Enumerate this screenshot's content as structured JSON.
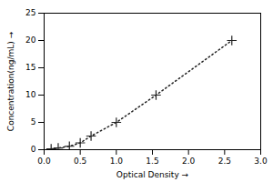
{
  "chart_data": {
    "type": "line",
    "x": [
      0.097,
      0.195,
      0.35,
      0.5,
      0.65,
      1.0,
      1.55,
      2.6
    ],
    "values": [
      0.156,
      0.312,
      0.625,
      1.25,
      2.5,
      5.0,
      10.0,
      20.0
    ],
    "xlabel": "Optical Density",
    "ylabel": "Concentration(ng/mL)",
    "xlim": [
      0,
      3
    ],
    "ylim": [
      0,
      25
    ],
    "xticks": [
      {
        "value": 0,
        "label": "0.0"
      },
      {
        "value": 0.5,
        "label": "0.5"
      },
      {
        "value": 1,
        "label": "1.0"
      },
      {
        "value": 1.5,
        "label": "1.5"
      },
      {
        "value": 2,
        "label": "2.0"
      },
      {
        "value": 2.5,
        "label": "2.5"
      },
      {
        "value": 3,
        "label": "3.0"
      }
    ],
    "yticks": [
      0,
      5,
      10,
      15,
      20,
      25
    ],
    "color": "#222222",
    "line_style": "dotted",
    "marker": "plus",
    "grid": false
  }
}
